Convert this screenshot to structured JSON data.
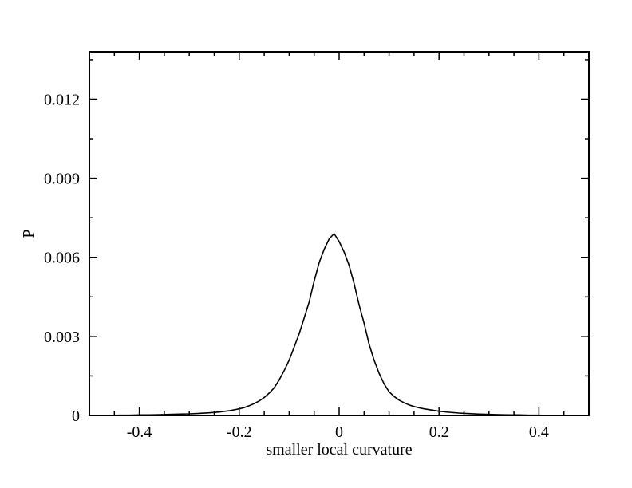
{
  "chart_data": {
    "type": "line",
    "title": "",
    "xlabel": "smaller local curvature",
    "ylabel": "P",
    "xlim": [
      -0.5,
      0.5
    ],
    "ylim": [
      0,
      0.0138
    ],
    "grid": false,
    "legend": "none",
    "line_color": "#000000",
    "x_ticks": [
      -0.4,
      -0.2,
      0,
      0.2,
      0.4
    ],
    "x_tick_labels": [
      "-0.4",
      "-0.2",
      "0",
      "0.2",
      "0.4"
    ],
    "y_ticks": [
      0,
      0.003,
      0.006,
      0.009,
      0.012
    ],
    "y_tick_labels": [
      "0",
      "0.003",
      "0.006",
      "0.009",
      "0.012"
    ],
    "series": [
      {
        "x": [
          -0.47,
          -0.44,
          -0.42,
          -0.4,
          -0.38,
          -0.36,
          -0.34,
          -0.32,
          -0.3,
          -0.28,
          -0.26,
          -0.24,
          -0.22,
          -0.2,
          -0.19,
          -0.18,
          -0.17,
          -0.16,
          -0.15,
          -0.14,
          -0.13,
          -0.12,
          -0.11,
          -0.1,
          -0.09,
          -0.08,
          -0.07,
          -0.06,
          -0.05,
          -0.04,
          -0.03,
          -0.02,
          -0.01,
          0,
          0.01,
          0.02,
          0.03,
          0.04,
          0.05,
          0.06,
          0.07,
          0.08,
          0.09,
          0.1,
          0.11,
          0.12,
          0.13,
          0.14,
          0.15,
          0.16,
          0.17,
          0.18,
          0.2,
          0.22,
          0.24,
          0.26,
          0.28,
          0.3,
          0.32,
          0.34,
          0.36,
          0.38,
          0.4,
          0.42,
          0.44
        ],
        "y": [
          0.0,
          1e-05,
          1e-05,
          2e-05,
          2e-05,
          3e-05,
          4e-05,
          5e-05,
          6e-05,
          8e-05,
          0.0001,
          0.00013,
          0.00018,
          0.00025,
          0.0003,
          0.00037,
          0.00045,
          0.00055,
          0.00068,
          0.00085,
          0.00105,
          0.00135,
          0.0017,
          0.0021,
          0.0026,
          0.0031,
          0.0037,
          0.0043,
          0.0051,
          0.0058,
          0.0063,
          0.0067,
          0.0069,
          0.0066,
          0.0062,
          0.0057,
          0.005,
          0.0042,
          0.0035,
          0.0027,
          0.0021,
          0.0016,
          0.0012,
          0.0009,
          0.00072,
          0.00058,
          0.00048,
          0.0004,
          0.00034,
          0.00029,
          0.00025,
          0.00022,
          0.00016,
          0.00012,
          9e-05,
          7e-05,
          5e-05,
          4e-05,
          3e-05,
          2e-05,
          2e-05,
          1e-05,
          1e-05,
          0.0,
          0.0
        ]
      }
    ]
  }
}
